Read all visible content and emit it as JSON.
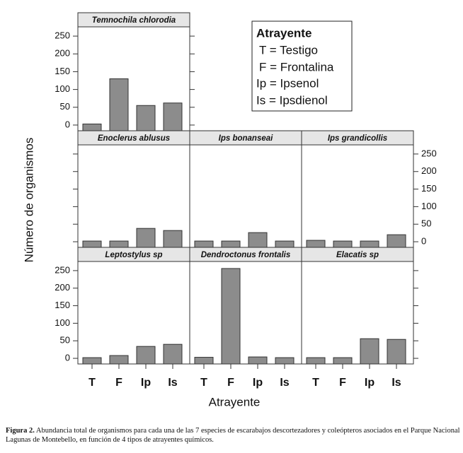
{
  "chart_data": {
    "type": "bar",
    "ylabel": "Número de organismos",
    "xlabel": "Atrayente",
    "categories": [
      "T",
      "F",
      "Ip",
      "Is"
    ],
    "ylim": [
      -16,
      276
    ],
    "yticks": [
      0,
      50,
      100,
      150,
      200,
      250
    ],
    "color": "#8c8c8c",
    "panels": [
      {
        "title": "Temnochila chlorodia",
        "values": [
          3,
          130,
          55,
          62
        ]
      },
      {
        "title": "Enoclerus ablusus",
        "values": [
          2,
          2,
          38,
          32
        ]
      },
      {
        "title": "Ips bonanseai",
        "values": [
          2,
          2,
          26,
          2
        ]
      },
      {
        "title": "Ips grandicollis",
        "values": [
          4,
          2,
          2,
          20
        ]
      },
      {
        "title": "Leptostylus sp",
        "values": [
          2,
          8,
          34,
          40
        ]
      },
      {
        "title": "Dendroctonus frontalis",
        "values": [
          3,
          256,
          4,
          2
        ]
      },
      {
        "title": "Elacatis sp",
        "values": [
          2,
          2,
          56,
          54
        ]
      }
    ],
    "legend": {
      "title": "Atrayente",
      "entries": [
        "T = Testigo",
        "F = Frontalina",
        "Ip = Ipsenol",
        "Is = Ipsdienol"
      ]
    }
  },
  "caption": {
    "label": "Figura 2.",
    "text": "Abundancia total de organismos para cada una de las 7 especies de escarabajos descortezadores y coleópteros asociados en el Parque Nacional Lagunas de Montebello, en función de 4 tipos de atrayentes químicos."
  }
}
